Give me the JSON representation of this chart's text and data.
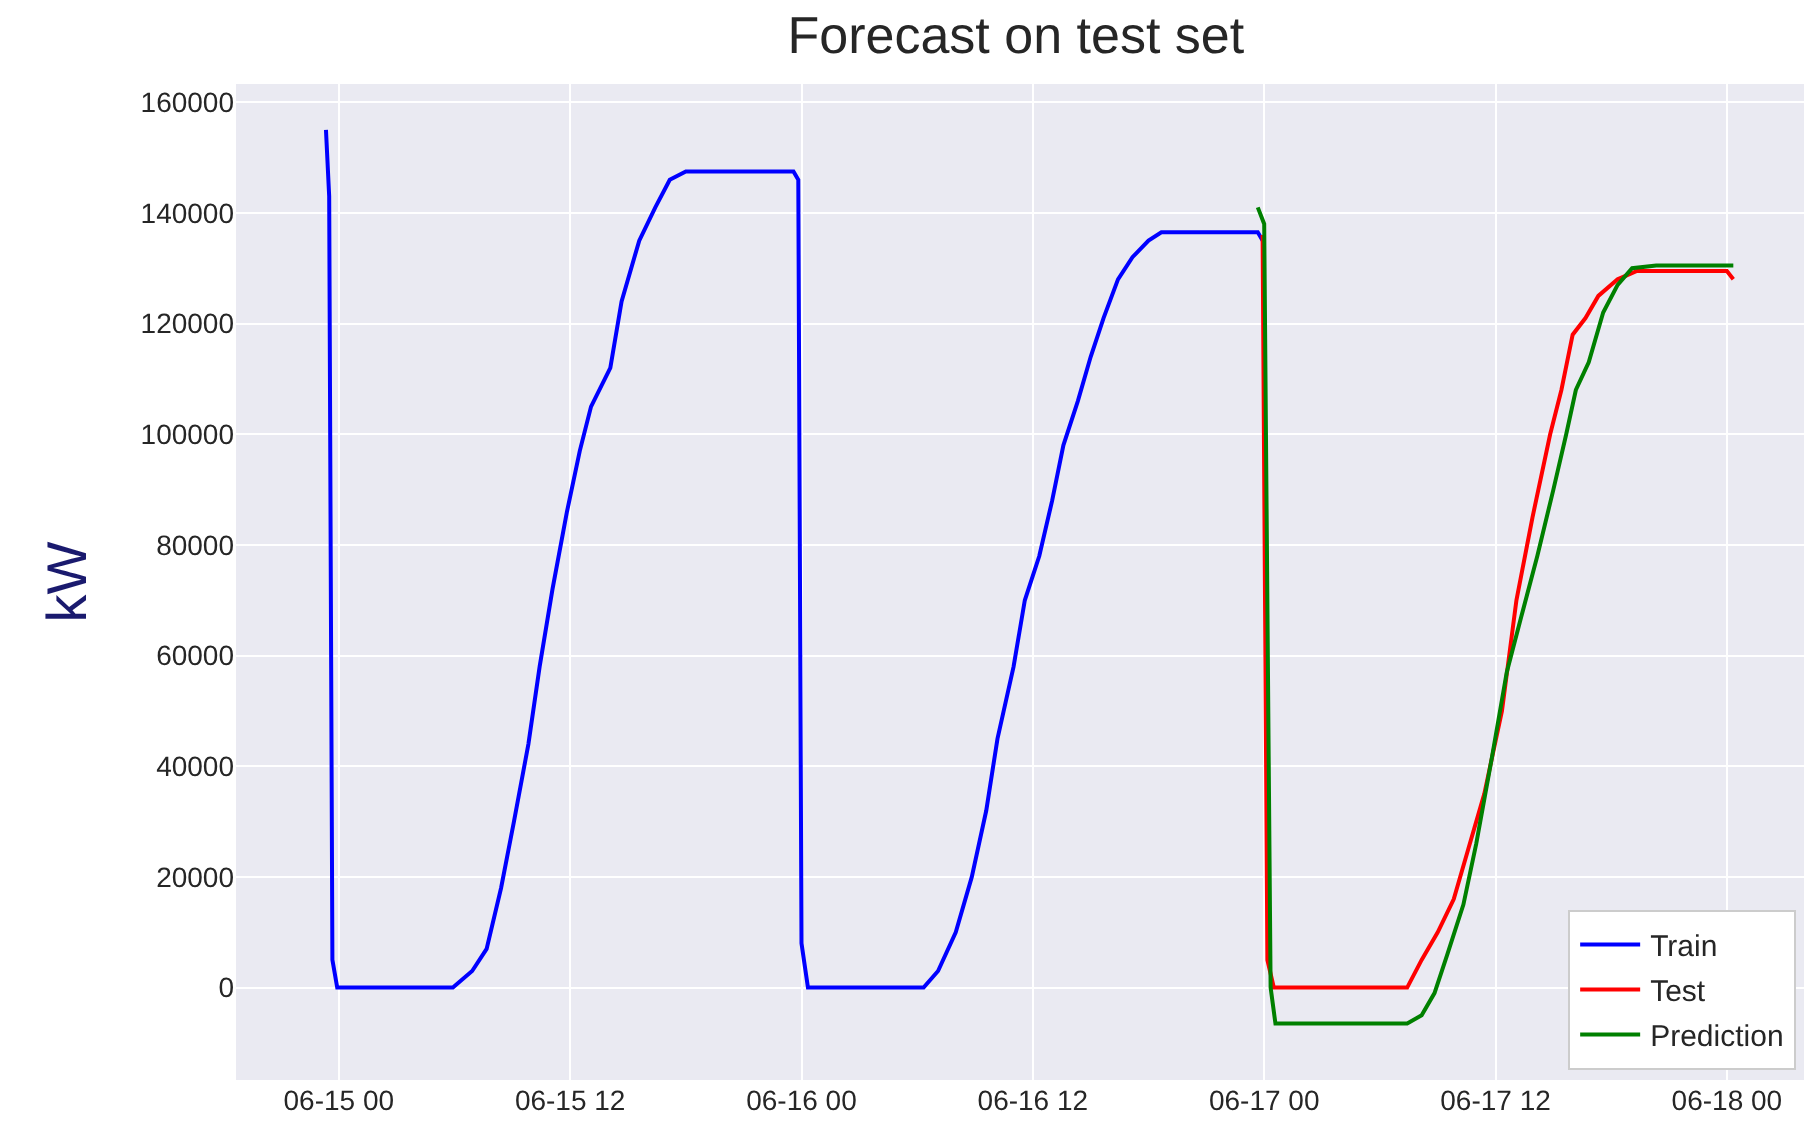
{
  "chart_data": {
    "type": "line",
    "title": "Forecast on test set",
    "ylabel": "kW",
    "xlim": [
      "--06-14T18:40",
      "--06-18T04:00"
    ],
    "xticks": [
      {
        "value": "--06-15T00:00",
        "label": "06-15 00"
      },
      {
        "value": "--06-15T12:00",
        "label": "06-15 12"
      },
      {
        "value": "--06-16T00:00",
        "label": "06-16 00"
      },
      {
        "value": "--06-16T12:00",
        "label": "06-16 12"
      },
      {
        "value": "--06-17T00:00",
        "label": "06-17 00"
      },
      {
        "value": "--06-17T12:00",
        "label": "06-17 12"
      },
      {
        "value": "--06-18T00:00",
        "label": "06-18 00"
      }
    ],
    "ylim": [
      -16700,
      163300
    ],
    "yticks": [
      0,
      20000,
      40000,
      60000,
      80000,
      100000,
      120000,
      140000,
      160000
    ],
    "grid": true,
    "legend": "bottom right",
    "marker": "none",
    "line_style": "solid",
    "series": [
      {
        "name": "Train",
        "color": "#0000ff",
        "x": [
          "--06-14T23:20",
          "--06-14T23:30",
          "--06-14T23:40",
          "--06-14T23:55",
          "--06-15T05:55",
          "--06-15T06:55",
          "--06-15T07:40",
          "--06-15T08:25",
          "--06-15T09:05",
          "--06-15T09:50",
          "--06-15T10:25",
          "--06-15T11:05",
          "--06-15T11:50",
          "--06-15T12:30",
          "--06-15T13:05",
          "--06-15T14:05",
          "--06-15T14:40",
          "--06-15T15:35",
          "--06-15T16:25",
          "--06-15T17:10",
          "--06-15T18:00",
          "--06-15T23:35",
          "--06-15T23:50",
          "--06-16T00:00",
          "--06-16T00:20",
          "--06-16T06:20",
          "--06-16T07:05",
          "--06-16T08:00",
          "--06-16T08:50",
          "--06-16T09:35",
          "--06-16T10:10",
          "--06-16T11:00",
          "--06-16T11:35",
          "--06-16T12:20",
          "--06-16T13:00",
          "--06-16T13:35",
          "--06-16T14:20",
          "--06-16T15:00",
          "--06-16T15:40",
          "--06-16T16:25",
          "--06-16T17:10",
          "--06-16T18:00",
          "--06-16T18:40",
          "--06-16T23:40",
          "--06-16T23:55"
        ],
        "values": [
          155000,
          143000,
          5000,
          0,
          0,
          3000,
          7000,
          18000,
          30000,
          44000,
          58000,
          72000,
          86000,
          97000,
          105000,
          112000,
          124000,
          135000,
          141000,
          146000,
          147500,
          147500,
          146000,
          8000,
          0,
          0,
          3000,
          10000,
          20000,
          32000,
          45000,
          58000,
          70000,
          78000,
          88000,
          98000,
          106000,
          114000,
          121000,
          128000,
          132000,
          135000,
          136500,
          136500,
          135000
        ]
      },
      {
        "name": "Test",
        "color": "#ff0000",
        "x": [
          "--06-16T23:55",
          "--06-17T00:10",
          "--06-17T00:30",
          "--06-17T07:25",
          "--06-17T08:10",
          "--06-17T09:00",
          "--06-17T09:50",
          "--06-17T10:35",
          "--06-17T11:25",
          "--06-17T12:20",
          "--06-17T13:05",
          "--06-17T13:55",
          "--06-17T14:50",
          "--06-17T15:25",
          "--06-17T16:00",
          "--06-17T16:40",
          "--06-17T17:20",
          "--06-17T18:20",
          "--06-17T19:20",
          "--06-18T00:00",
          "--06-18T00:20"
        ],
        "values": [
          136000,
          5000,
          0,
          0,
          5000,
          10000,
          16000,
          25000,
          35000,
          50000,
          70000,
          85000,
          100000,
          108000,
          118000,
          121000,
          125000,
          128000,
          129500,
          129500,
          128000
        ]
      },
      {
        "name": "Prediction",
        "color": "#008000",
        "x": [
          "--06-16T23:40",
          "--06-17T00:00",
          "--06-17T00:20",
          "--06-17T00:35",
          "--06-17T07:25",
          "--06-17T08:10",
          "--06-17T08:50",
          "--06-17T09:30",
          "--06-17T10:20",
          "--06-17T11:00",
          "--06-17T11:50",
          "--06-17T12:35",
          "--06-17T13:20",
          "--06-17T14:10",
          "--06-17T15:00",
          "--06-17T15:40",
          "--06-17T16:10",
          "--06-17T16:50",
          "--06-17T17:35",
          "--06-17T18:20",
          "--06-17T19:05",
          "--06-17T20:20",
          "--06-18T00:20"
        ],
        "values": [
          141000,
          138000,
          0,
          -6500,
          -6500,
          -5000,
          -1000,
          6000,
          15000,
          26000,
          42000,
          57000,
          67000,
          78000,
          90000,
          100000,
          108000,
          113000,
          122000,
          127000,
          130000,
          130500,
          130500
        ]
      }
    ]
  }
}
